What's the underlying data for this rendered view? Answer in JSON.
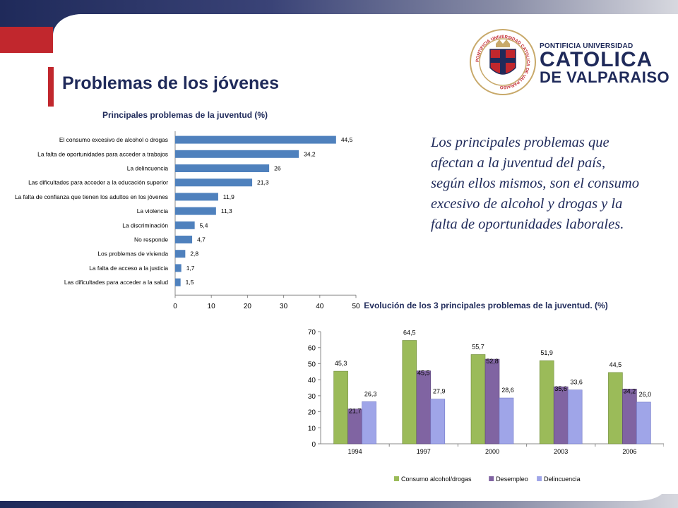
{
  "slide": {
    "title": "Problemas de los jóvenes",
    "institution": {
      "line1": "PONTIFICIA UNIVERSIDAD",
      "line2": "CATOLICA",
      "line3": "DE VALPARAISO",
      "seal_text": "PONTIFICIA UNIVERSIDAD CATOLICA DE VALPARAISO"
    },
    "body_text": "Los principales problemas que afectan a la juventud del país, según ellos mismos, son el consumo excesivo de alcohol y drogas y la falta de oportunidades laborales."
  },
  "colors": {
    "navy": "#1f2a5a",
    "red": "#c1272d",
    "bar_blue": "#4f81bd",
    "green": "#9bbb59",
    "purple": "#8064a2",
    "lavender": "#9fa5e8"
  },
  "chart_data": [
    {
      "type": "bar",
      "orientation": "horizontal",
      "title": "Principales problemas de la juventud (%)",
      "categories": [
        "El consumo excesivo de alcohol o drogas",
        "La falta de oportunidades para acceder a trabajos",
        "La delincuencia",
        "Las dificultades para acceder a la educación superior",
        "La falta de confianza que tienen los adultos en los jóvenes",
        "La violencia",
        "La discriminación",
        "No responde",
        "Los problemas de vivienda",
        "La falta de acceso a la justicia",
        "Las dificultades para acceder a la salud"
      ],
      "values": [
        44.5,
        34.2,
        26,
        21.3,
        11.9,
        11.3,
        5.4,
        4.7,
        2.8,
        1.7,
        1.5
      ],
      "value_labels": [
        "44,5",
        "34,2",
        "26",
        "21,3",
        "11,9",
        "11,3",
        "5,4",
        "4,7",
        "2,8",
        "1,7",
        "1,5"
      ],
      "xlim": [
        0,
        50
      ],
      "xticks": [
        "0",
        "10",
        "20",
        "30",
        "40",
        "50"
      ],
      "grid": false
    },
    {
      "type": "bar",
      "title": "Evolución de los 3 principales problemas de la juventud. (%)",
      "categories": [
        "1994",
        "1997",
        "2000",
        "2003",
        "2006"
      ],
      "series": [
        {
          "name": "Consumo alcohol/drogas",
          "values": [
            45.3,
            64.5,
            55.7,
            51.9,
            44.5
          ],
          "labels": [
            "45,3",
            "64,5",
            "55,7",
            "51,9",
            "44,5"
          ]
        },
        {
          "name": "Desempleo",
          "values": [
            21.7,
            45.5,
            52.8,
            35.6,
            34.2
          ],
          "labels": [
            "21,7",
            "45,5",
            "52,8",
            "35,6",
            "34,2"
          ]
        },
        {
          "name": "Delincuencia",
          "values": [
            26.3,
            27.9,
            28.6,
            33.6,
            26.0
          ],
          "labels": [
            "26,3",
            "27,9",
            "28,6",
            "33,6",
            "26,0"
          ]
        }
      ],
      "ylim": [
        0,
        70
      ],
      "yticks": [
        "0",
        "10",
        "20",
        "30",
        "40",
        "50",
        "60",
        "70"
      ],
      "legend": "bottom",
      "grid": false
    }
  ]
}
